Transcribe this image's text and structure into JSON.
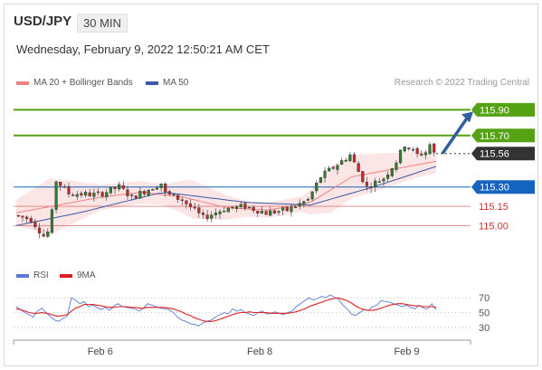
{
  "header": {
    "symbol": "USD/JPY",
    "timeframe": "30 MIN",
    "datetime": "Wednesday, February 9, 2022 12:50:21 AM CET"
  },
  "legend": {
    "ma20": "MA 20 + Bollinger Bands",
    "ma50": "MA 50",
    "rsi": "RSI",
    "ma9": "9MA"
  },
  "credit": "Research © 2022 Trading Central",
  "colors": {
    "candle_up": "#2e7d32",
    "candle_down": "#c62828",
    "bollinger_fill": "#fbdcdc",
    "ma20": "#f08080",
    "ma50": "#3a5aa8",
    "resistance": "#55a315",
    "support": "#1565c0",
    "support_minor": "#d32f2f",
    "current": "#333333",
    "arrow": "#2f5f9e",
    "rsi": "#5a7ad6",
    "ma9": "#e02020"
  },
  "chart_data": [
    {
      "type": "candlestick",
      "title": "USD/JPY",
      "x_labels": [
        "Feb 6",
        "Feb 8",
        "Feb 9"
      ],
      "x_label_positions": [
        0.2,
        0.58,
        0.93
      ],
      "ylim": [
        114.75,
        116.05
      ],
      "levels": [
        {
          "value": 115.9,
          "label": "115.90",
          "kind": "resistance"
        },
        {
          "value": 115.7,
          "label": "115.70",
          "kind": "resistance"
        },
        {
          "value": 115.56,
          "label": "115.56",
          "kind": "current"
        },
        {
          "value": 115.3,
          "label": "115.30",
          "kind": "support"
        },
        {
          "value": 115.15,
          "label": "115.15",
          "kind": "support_minor"
        },
        {
          "value": 115.0,
          "label": "115.00",
          "kind": "support_minor"
        }
      ],
      "arrow": {
        "from": 115.56,
        "to": 115.9,
        "direction": "up"
      },
      "close_path": [
        [
          0,
          115.08
        ],
        [
          4,
          115.05
        ],
        [
          7,
          114.92
        ],
        [
          8,
          114.95
        ],
        [
          9,
          115.1
        ],
        [
          10,
          115.35
        ],
        [
          13,
          115.25
        ],
        [
          20,
          115.24
        ],
        [
          25,
          115.3
        ],
        [
          28,
          115.22
        ],
        [
          35,
          115.33
        ],
        [
          36,
          115.25
        ],
        [
          40,
          115.2
        ],
        [
          45,
          115.06
        ],
        [
          50,
          115.13
        ],
        [
          55,
          115.15
        ],
        [
          60,
          115.1
        ],
        [
          65,
          115.12
        ],
        [
          70,
          115.2
        ],
        [
          73,
          115.38
        ],
        [
          78,
          115.5
        ],
        [
          80,
          115.55
        ],
        [
          82,
          115.42
        ],
        [
          84,
          115.3
        ],
        [
          88,
          115.37
        ],
        [
          91,
          115.5
        ],
        [
          93,
          115.63
        ],
        [
          96,
          115.55
        ],
        [
          98,
          115.57
        ],
        [
          99,
          115.63
        ],
        [
          100,
          115.56
        ]
      ],
      "candle_count": 100,
      "ma20": [
        [
          0,
          115.1
        ],
        [
          10,
          115.16
        ],
        [
          20,
          115.22
        ],
        [
          30,
          115.26
        ],
        [
          40,
          115.22
        ],
        [
          50,
          115.14
        ],
        [
          60,
          115.12
        ],
        [
          70,
          115.18
        ],
        [
          80,
          115.38
        ],
        [
          90,
          115.44
        ],
        [
          100,
          115.5
        ]
      ],
      "bollinger_width": [
        [
          0,
          0.1
        ],
        [
          8,
          0.22
        ],
        [
          20,
          0.1
        ],
        [
          35,
          0.08
        ],
        [
          42,
          0.15
        ],
        [
          55,
          0.06
        ],
        [
          68,
          0.06
        ],
        [
          75,
          0.18
        ],
        [
          85,
          0.15
        ],
        [
          95,
          0.1
        ],
        [
          100,
          0.09
        ]
      ],
      "ma50": [
        [
          0,
          115.0
        ],
        [
          15,
          115.1
        ],
        [
          35,
          115.26
        ],
        [
          55,
          115.18
        ],
        [
          70,
          115.16
        ],
        [
          85,
          115.3
        ],
        [
          100,
          115.46
        ]
      ]
    },
    {
      "type": "line",
      "title": "RSI",
      "y_ticks": [
        70,
        50,
        30
      ],
      "ylim": [
        20,
        80
      ],
      "series": [
        {
          "name": "RSI",
          "values": [
            58,
            54,
            50,
            47,
            44,
            52,
            56,
            50,
            45,
            40,
            38,
            42,
            45,
            70,
            67,
            62,
            65,
            58,
            60,
            57,
            54,
            57,
            53,
            59,
            62,
            58,
            57,
            56,
            55,
            52,
            56,
            62,
            60,
            58,
            56,
            55,
            54,
            50,
            44,
            40,
            38,
            35,
            34,
            32,
            36,
            38,
            40,
            44,
            47,
            50,
            48,
            55,
            52,
            54,
            50,
            48,
            46,
            50,
            52,
            48,
            49,
            51,
            49,
            47,
            50,
            52,
            58,
            62,
            66,
            70,
            67,
            69,
            72,
            70,
            74,
            71,
            68,
            60,
            55,
            48,
            46,
            50,
            54,
            53,
            58,
            60,
            66,
            65,
            64,
            62,
            60,
            58,
            60,
            57,
            55,
            60,
            56,
            55,
            62,
            54
          ]
        },
        {
          "name": "9MA",
          "values": [
            55,
            54,
            52,
            50,
            49,
            49,
            50,
            49,
            48,
            46,
            45,
            46,
            47,
            52,
            56,
            58,
            61,
            61,
            61,
            60,
            59,
            58,
            57,
            57,
            58,
            58,
            58,
            57,
            57,
            56,
            56,
            57,
            57,
            57,
            57,
            57,
            56,
            55,
            53,
            51,
            48,
            46,
            43,
            41,
            39,
            38,
            38,
            39,
            41,
            43,
            45,
            47,
            49,
            50,
            50,
            51,
            50,
            50,
            50,
            50,
            49,
            49,
            49,
            49,
            49,
            50,
            51,
            53,
            55,
            58,
            60,
            62,
            64,
            66,
            68,
            69,
            70,
            68,
            66,
            63,
            59,
            56,
            54,
            53,
            53,
            54,
            56,
            58,
            60,
            61,
            62,
            62,
            61,
            60,
            59,
            59,
            58,
            58,
            58,
            57
          ]
        }
      ]
    }
  ]
}
